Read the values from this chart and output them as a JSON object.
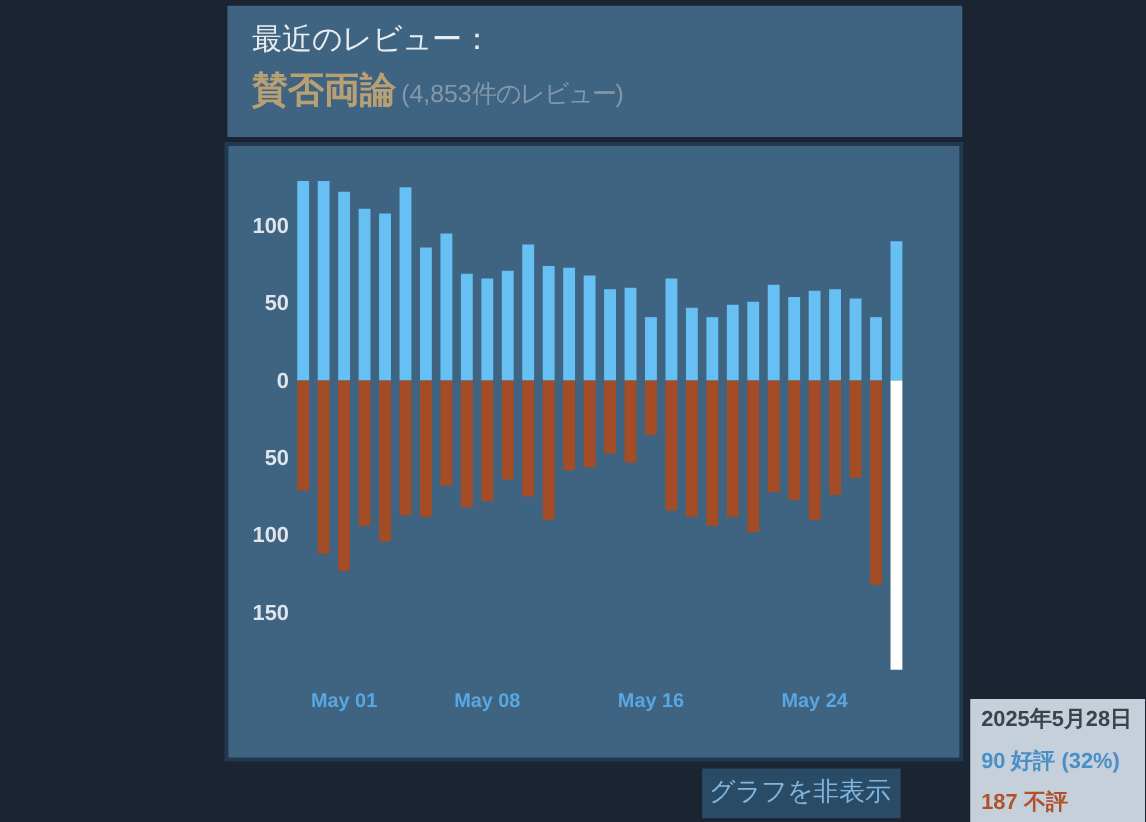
{
  "chart_data": {
    "type": "bar",
    "title": "最近のレビュー：",
    "subtitle": "賛否両論",
    "annotations": [
      "(4,853件のレビュー)",
      "2025年5月28日",
      "90 好評 (32%)",
      "187 不評",
      "グラフを非表示"
    ],
    "categories": [
      null,
      null,
      "May 01",
      null,
      null,
      null,
      null,
      null,
      null,
      "May 08",
      null,
      null,
      null,
      null,
      null,
      null,
      null,
      "May 16",
      null,
      null,
      null,
      null,
      null,
      null,
      null,
      "May 24",
      null,
      null,
      null,
      null
    ],
    "stacked": true,
    "ylim": [
      -245,
      153
    ],
    "yticks": [
      {
        "value": -150,
        "label": "150"
      },
      {
        "value": -100,
        "label": "100"
      },
      {
        "value": -50,
        "label": "50"
      },
      0,
      50,
      100
    ],
    "series": [
      {
        "color": "#66c0f4",
        "values": [
          129,
          129,
          122,
          111,
          108,
          125,
          86,
          95,
          69,
          66,
          71,
          88,
          74,
          73,
          68,
          59,
          60,
          41,
          66,
          47,
          41,
          49,
          51,
          62,
          54,
          58,
          59,
          53,
          41,
          90
        ]
      },
      {
        "colors": [
          "#a34c25",
          "#a34c25",
          "#a34c25",
          "#a34c25",
          "#a34c25",
          "#a34c25",
          "#a34c25",
          "#a34c25",
          "#a34c25",
          "#a34c25",
          "#a34c25",
          "#a34c25",
          "#a34c25",
          "#a34c25",
          "#a34c25",
          "#a34c25",
          "#a34c25",
          "#a34c25",
          "#a34c25",
          "#a34c25",
          "#a34c25",
          "#a34c25",
          "#a34c25",
          "#a34c25",
          "#a34c25",
          "#a34c25",
          "#a34c25",
          "#a34c25",
          "#a34c25",
          "#ffffff"
        ],
        "values": [
          -71,
          -112,
          -123,
          -94,
          -104,
          -87,
          -88,
          -68,
          -82,
          -78,
          -64,
          -75,
          -90,
          -58,
          -56,
          -47,
          -53,
          -35,
          -84,
          -88,
          -94,
          -88,
          -98,
          -72,
          -77,
          -90,
          -74,
          -63,
          -132,
          -187
        ]
      }
    ]
  }
}
